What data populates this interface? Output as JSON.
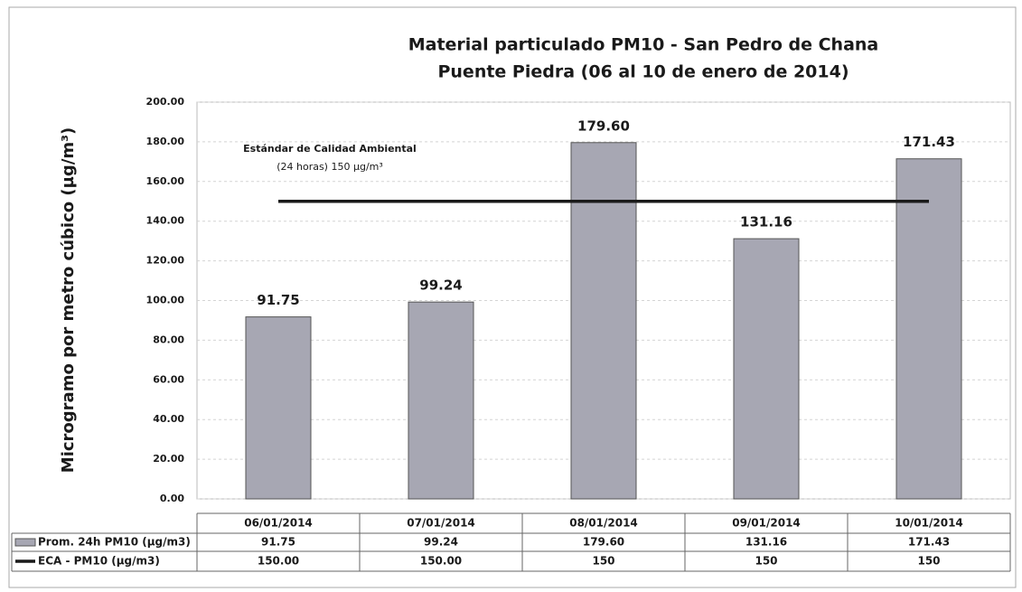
{
  "chart_data": {
    "type": "bar",
    "title": [
      "Material particulado PM10 - San Pedro de Chana",
      "Puente Piedra (06 al 10 de enero de 2014)"
    ],
    "y_label": "Microgramo por metro cúbico (µg/m³)",
    "annotation": [
      "Estándar de Calidad Ambiental",
      "(24 horas) 150 µg/m³"
    ],
    "categories": [
      "06/01/2014",
      "07/01/2014",
      "08/01/2014",
      "09/01/2014",
      "10/01/2014"
    ],
    "series": [
      {
        "name": "Prom. 24h PM10 (µg/m3)",
        "type": "bar",
        "color": "#a7a7b3",
        "values": [
          91.75,
          99.24,
          179.6,
          131.16,
          171.43
        ],
        "value_labels": [
          "91.75",
          "99.24",
          "179.60",
          "131.16",
          "171.43"
        ]
      },
      {
        "name": "ECA - PM10 (µg/m3)",
        "type": "line",
        "color": "#1a1a1a",
        "values": [
          150,
          150,
          150,
          150,
          150
        ],
        "value_labels": [
          "150.00",
          "150.00",
          "150",
          "150",
          "150"
        ]
      }
    ],
    "ylim": [
      0,
      200
    ],
    "yticks": [
      {
        "value": 0,
        "label": "0.00"
      },
      {
        "value": 20,
        "label": "20.00"
      },
      {
        "value": 40,
        "label": "40.00"
      },
      {
        "value": 60,
        "label": "60.00"
      },
      {
        "value": 80,
        "label": "80.00"
      },
      {
        "value": 100,
        "label": "100.00"
      },
      {
        "value": 120,
        "label": "120.00"
      },
      {
        "value": 140,
        "label": "140.00"
      },
      {
        "value": 160,
        "label": "160.00"
      },
      {
        "value": 180,
        "label": "180.00"
      },
      {
        "value": 200,
        "label": "200.00"
      }
    ],
    "grid": true,
    "data_table": true
  }
}
